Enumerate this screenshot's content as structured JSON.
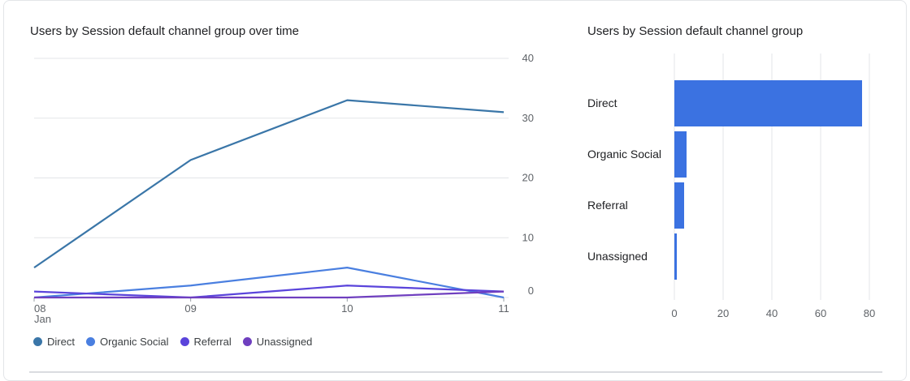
{
  "colors": {
    "direct": "#3a76a8",
    "organic_social": "#4a7fe0",
    "referral": "#5a44db",
    "unassigned": "#6f3fbf",
    "bar": "#3b72e1",
    "grid": "#e3e5e8"
  },
  "chart_data": [
    {
      "type": "line",
      "title": "Users by Session default channel group over time",
      "x": [
        "08",
        "09",
        "10",
        "11"
      ],
      "x_sub_labels": [
        "Jan",
        "",
        "",
        ""
      ],
      "ylim": [
        0,
        40
      ],
      "y_ticks": [
        0,
        10,
        20,
        30,
        40
      ],
      "y_axis_side": "right",
      "grid": true,
      "legend_position": "bottom-left",
      "series": [
        {
          "name": "Direct",
          "color_key": "direct",
          "values": [
            5,
            23,
            33,
            31
          ]
        },
        {
          "name": "Organic Social",
          "color_key": "organic_social",
          "values": [
            0,
            2,
            5,
            0
          ]
        },
        {
          "name": "Referral",
          "color_key": "referral",
          "values": [
            1,
            0,
            2,
            1
          ]
        },
        {
          "name": "Unassigned",
          "color_key": "unassigned",
          "values": [
            0,
            0,
            0,
            1
          ]
        }
      ]
    },
    {
      "type": "bar",
      "orientation": "horizontal",
      "title": "Users by Session default channel group",
      "categories": [
        "Direct",
        "Organic Social",
        "Referral",
        "Unassigned"
      ],
      "values": [
        77,
        5,
        4,
        1
      ],
      "xlim": [
        0,
        80
      ],
      "x_ticks": [
        0,
        20,
        40,
        60,
        80
      ],
      "grid": true
    }
  ]
}
